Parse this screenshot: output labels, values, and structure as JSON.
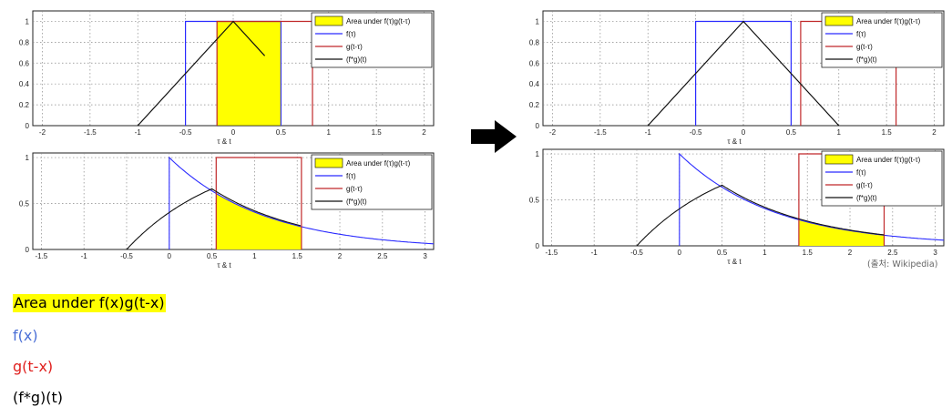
{
  "legend_entries": [
    "Area under f(τ)g(t-τ)",
    "f(τ)",
    "g(t-τ)",
    "(f*g)(t)"
  ],
  "colors": {
    "f": "#2b2bff",
    "g": "#c0282a",
    "conv": "#111111",
    "area": "#ffff00"
  },
  "arrow_icon": "right-arrow-icon",
  "source_note": "(출처: Wikipedia)",
  "key": {
    "area": "Area under f(x)g(t-x)",
    "f": "f(x)",
    "g": "g(t-x)",
    "conv": "(f*g)(t)"
  },
  "chart_data": [
    {
      "type": "line",
      "id": "box-t033",
      "xlabel": "τ & t",
      "xlim": [
        -2.1,
        2.1
      ],
      "ylim": [
        0,
        1.1
      ],
      "xticks": [
        -2,
        -1.5,
        -1,
        -0.5,
        0,
        0.5,
        1,
        1.5,
        2
      ],
      "xtick_labels": [
        "-2",
        "-1.5",
        "-1",
        "-0.5",
        "0",
        "0.5",
        "1",
        "1.5",
        "2"
      ],
      "yticks": [
        0,
        0.2,
        0.4,
        0.6,
        0.8,
        1
      ],
      "ytick_labels": [
        "0",
        "0.2",
        "0.4",
        "0.6",
        "0.8",
        "1"
      ],
      "grid": true,
      "legend_position": "top-right",
      "area": {
        "x": [
          -0.17,
          0.5
        ],
        "y": 1
      },
      "series": [
        {
          "key": "f",
          "x": [
            -0.5,
            -0.5,
            0.5,
            0.5
          ],
          "y": [
            0,
            1,
            1,
            0
          ]
        },
        {
          "key": "g",
          "x": [
            -0.17,
            -0.17,
            0.83,
            0.83
          ],
          "y": [
            0,
            1,
            1,
            0
          ]
        },
        {
          "key": "conv",
          "x": [
            -1,
            0,
            0.33
          ],
          "y": [
            0,
            1,
            0.67
          ]
        }
      ]
    },
    {
      "type": "line",
      "id": "box-t110",
      "xlabel": "τ & t",
      "xlim": [
        -2.1,
        2.1
      ],
      "ylim": [
        0,
        1.1
      ],
      "xticks": [
        -2,
        -1.5,
        -1,
        -0.5,
        0,
        0.5,
        1,
        1.5,
        2
      ],
      "xtick_labels": [
        "-2",
        "-1.5",
        "-1",
        "-0.5",
        "0",
        "0.5",
        "1",
        "1.5",
        "2"
      ],
      "yticks": [
        0,
        0.2,
        0.4,
        0.6,
        0.8,
        1
      ],
      "ytick_labels": [
        "0",
        "0.2",
        "0.4",
        "0.6",
        "0.8",
        "1"
      ],
      "grid": true,
      "legend_position": "top-right",
      "area": null,
      "series": [
        {
          "key": "f",
          "x": [
            -0.5,
            -0.5,
            0.5,
            0.5
          ],
          "y": [
            0,
            1,
            1,
            0
          ]
        },
        {
          "key": "g",
          "x": [
            0.6,
            0.6,
            1.6,
            1.6
          ],
          "y": [
            0,
            1,
            1,
            0
          ]
        },
        {
          "key": "conv",
          "x": [
            -1,
            0,
            1
          ],
          "y": [
            0,
            1,
            0
          ]
        }
      ]
    },
    {
      "type": "area",
      "id": "exp-t155",
      "xlabel": "τ & t",
      "xlim": [
        -1.6,
        3.1
      ],
      "ylim": [
        0,
        1.05
      ],
      "xticks": [
        -1.5,
        -1,
        -0.5,
        0,
        0.5,
        1,
        1.5,
        2,
        2.5,
        3
      ],
      "xtick_labels": [
        "-1.5",
        "-1",
        "-0.5",
        "0",
        "0.5",
        "1",
        "1.5",
        "2",
        "2.5",
        "3"
      ],
      "yticks": [
        0,
        0.5,
        1
      ],
      "ytick_labels": [
        "0",
        "0.5",
        "1"
      ],
      "grid": true,
      "legend_position": "top-right",
      "f_decay": {
        "start": 0,
        "end": 3.1,
        "rate": 0.9
      },
      "g_box": {
        "start": 0.55,
        "end": 1.55
      },
      "conv_until": 1.55,
      "window_width": 1
    },
    {
      "type": "area",
      "id": "exp-t240",
      "xlabel": "τ & t",
      "xlim": [
        -1.6,
        3.1
      ],
      "ylim": [
        0,
        1.05
      ],
      "xticks": [
        -1.5,
        -1,
        -0.5,
        0,
        0.5,
        1,
        1.5,
        2,
        2.5,
        3
      ],
      "xtick_labels": [
        "-1.5",
        "-1",
        "-0.5",
        "0",
        "0.5",
        "1",
        "1.5",
        "2",
        "2.5",
        "3"
      ],
      "yticks": [
        0,
        0.5,
        1
      ],
      "ytick_labels": [
        "0",
        "0.5",
        "1"
      ],
      "grid": true,
      "legend_position": "top-right",
      "f_decay": {
        "start": 0,
        "end": 3.1,
        "rate": 0.9
      },
      "g_box": {
        "start": 1.4,
        "end": 2.4
      },
      "conv_until": 2.4,
      "window_width": 1
    }
  ]
}
